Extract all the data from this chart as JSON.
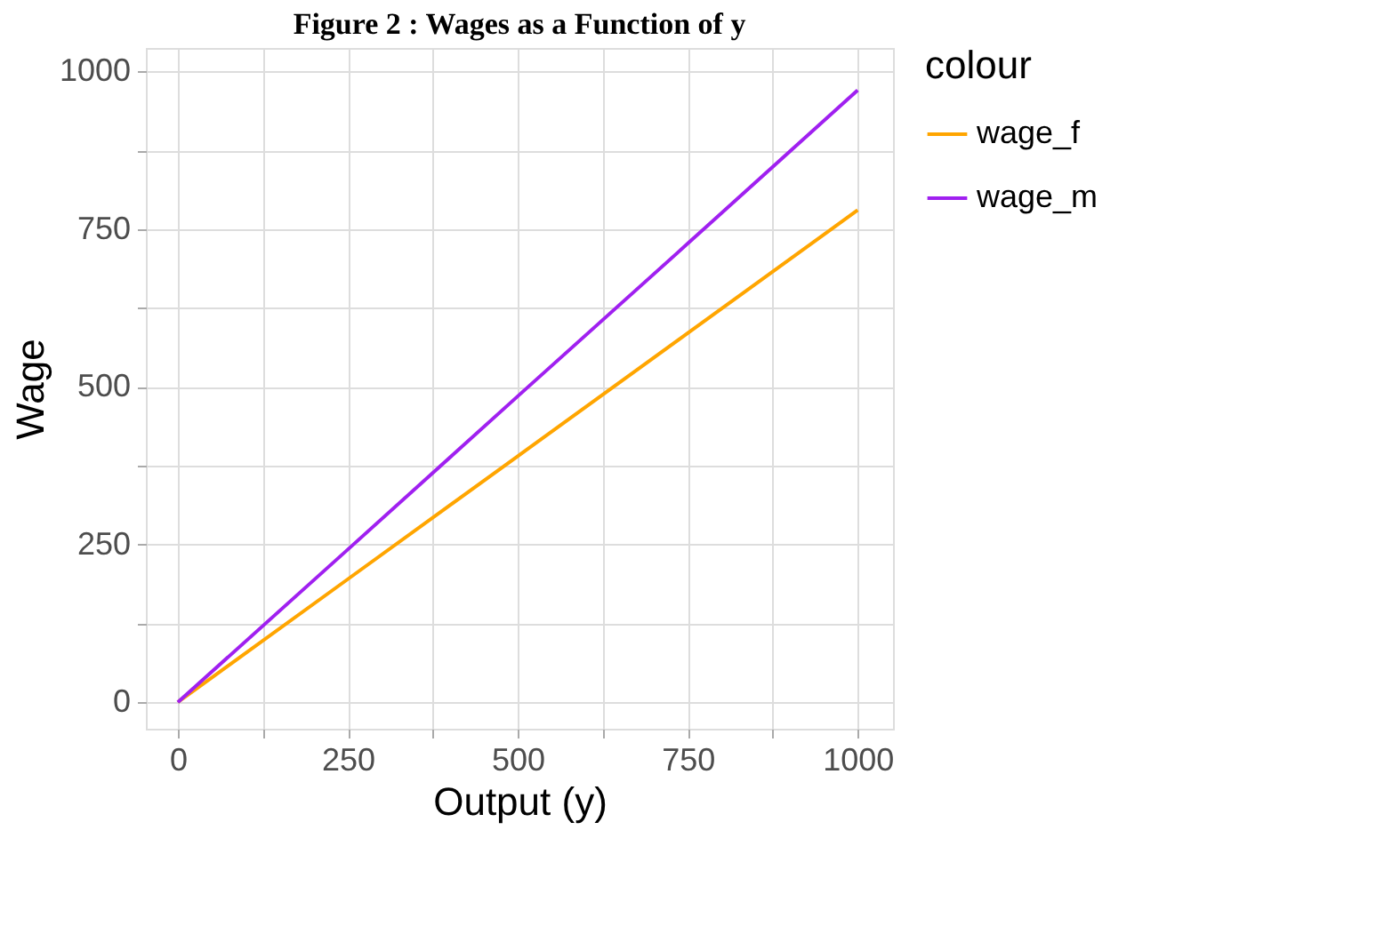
{
  "chart_data": {
    "type": "line",
    "title": "Figure 2 : Wages as a Function of y",
    "xlabel": "Output (y)",
    "ylabel": "Wage",
    "legend_title": "colour",
    "x": [
      0,
      250,
      500,
      750,
      1000
    ],
    "series": [
      {
        "name": "wage_f",
        "color": "#ffa500",
        "values": [
          0,
          195,
          390,
          585,
          780
        ]
      },
      {
        "name": "wage_m",
        "color": "#a020f0",
        "values": [
          0,
          242,
          485,
          727,
          970
        ]
      }
    ],
    "xlim": [
      -47,
      1052
    ],
    "ylim": [
      -42,
      1037
    ],
    "xticks": [
      0,
      {
        "value": 125,
        "label": null
      },
      250,
      {
        "value": 375,
        "label": null
      },
      500,
      {
        "value": 625,
        "label": null
      },
      750,
      {
        "value": 875,
        "label": null
      },
      1000
    ],
    "yticks": [
      0,
      {
        "value": 125,
        "label": null
      },
      250,
      {
        "value": 375,
        "label": null
      },
      500,
      {
        "value": 625,
        "label": null
      },
      750,
      {
        "value": 875,
        "label": null
      },
      1000
    ],
    "grid": true,
    "legend": "right",
    "marker": "none",
    "line_style": "solid"
  }
}
